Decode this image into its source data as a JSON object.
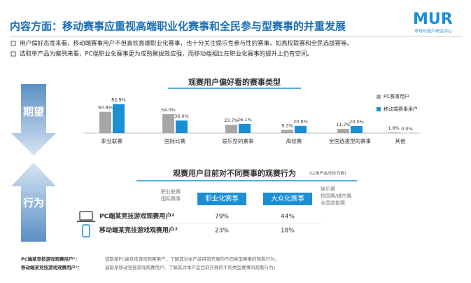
{
  "header": {
    "title": "内容方面：移动赛事应重视高端职业化赛事和全民参与型赛事的并重发展",
    "logo": "MUR",
    "logo_sub": "市场与用户研究中心"
  },
  "bullets": [
    "用户偏好态度来看，移动端赛事用户不但喜欢高端职业化赛事，也十分关注娱乐性参与性的赛事，如高校联赛和全民选拔赛等。",
    "选取单产品为案例来看，PC端职业化赛事更为成熟聚拢效应强，而移动端相比在职业化赛事的提升上仍有空间。"
  ],
  "side": {
    "expect": "期望",
    "behavior": "行为"
  },
  "chart_data": {
    "type": "bar",
    "title": "观赛用户偏好看的赛事类型",
    "categories": [
      "职业联赛",
      "国际比赛",
      "娱乐型的赛事",
      "高校赛",
      "全国选拔型的赛事",
      "其他"
    ],
    "series": [
      {
        "name": "PC赛事用户",
        "color": "#a6a6a6",
        "values": [
          60.8,
          54.0,
          23.7,
          9.3,
          11.7,
          1.8
        ],
        "value_labels": [
          "60.8%",
          "54.0%",
          "23.7%",
          "9.3%",
          "11.7%",
          "1.8%"
        ]
      },
      {
        "name": "移动端赛事用户",
        "color": "#1a8fd6",
        "values": [
          82.9,
          36.0,
          26.1,
          20.6,
          20.0,
          0.0
        ],
        "value_labels": [
          "82.9%",
          "36.0%",
          "26.1%",
          "20.6%",
          "20.0%",
          "0.0%"
        ]
      }
    ]
  },
  "behavior": {
    "title": "观赛用户目前对不同赛事的观赛行为",
    "note": "(以单产品分析为例)",
    "left_tags": [
      "职业联赛",
      "国际赛事"
    ],
    "right_tags": [
      "娱乐赛",
      "校园赛/城市赛",
      "全国选拔赛"
    ],
    "table": {
      "columns": [
        "职业化赛事",
        "大众化赛事"
      ],
      "rows": [
        [
          "PC端某竞技游戏观赛用户²",
          "79%",
          "44%"
        ],
        [
          "移动端某竞技游戏观赛用户²",
          "23%",
          "18%"
        ]
      ]
    }
  },
  "footnotes": [
    [
      "PC端某竞技游戏观赛用户²：",
      "选取某PC端竞技游戏观赛用户，了解其对本产品目前开展的不同类型赛事的观看行为；"
    ],
    [
      "移动端某竞技游戏观赛用户²：",
      "选取某移动竞技游戏观赛用户，了解其对本产品目前开展的不同类型赛事的观看行为；"
    ]
  ]
}
